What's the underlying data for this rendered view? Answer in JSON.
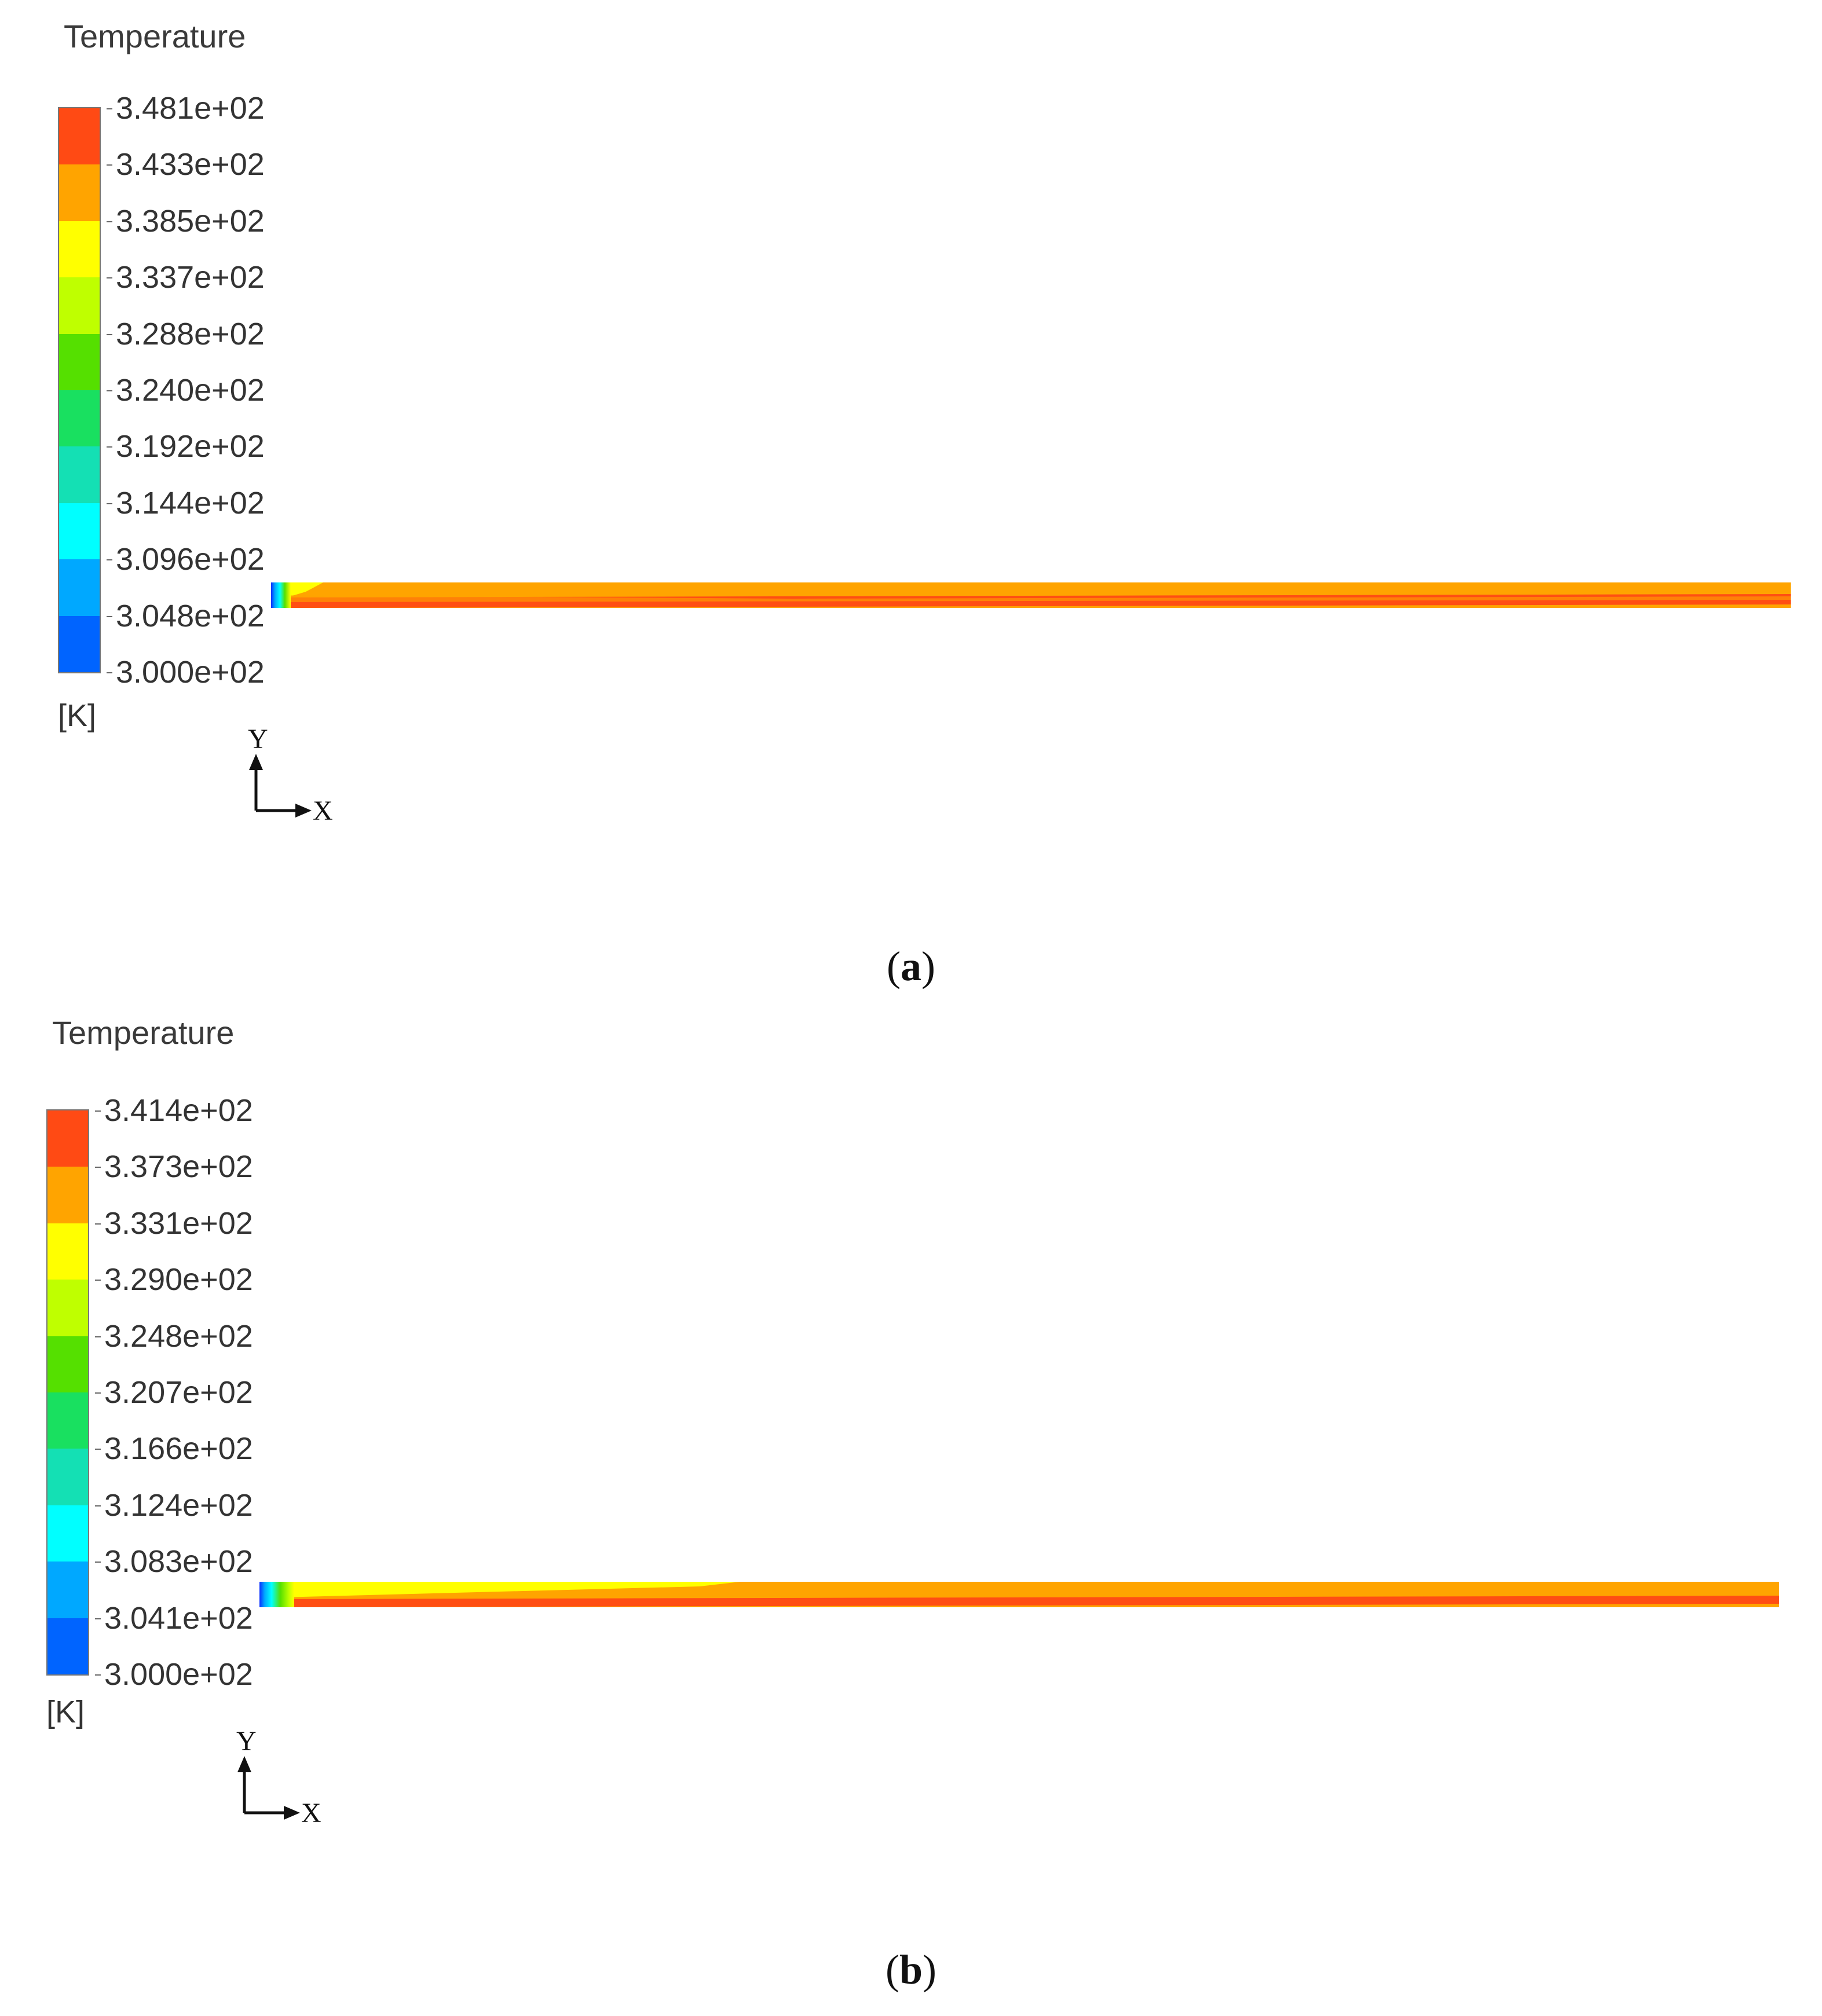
{
  "panels": [
    {
      "id": "a",
      "colorbar_title": "Temperature",
      "unit": "[K]",
      "levels": [
        "3.481e+02",
        "3.433e+02",
        "3.385e+02",
        "3.337e+02",
        "3.288e+02",
        "3.240e+02",
        "3.192e+02",
        "3.144e+02",
        "3.096e+02",
        "3.048e+02",
        "3.000e+02"
      ],
      "colors": [
        "#ff4a14",
        "#ffa400",
        "#ffff00",
        "#bfff00",
        "#55e000",
        "#19e060",
        "#14e0b4",
        "#00ffff",
        "#00a8ff",
        "#0064ff",
        "#0a2eff"
      ],
      "axis_x": "X",
      "axis_y": "Y",
      "caption_open": "(",
      "caption_letter": "a",
      "caption_close": ")"
    },
    {
      "id": "b",
      "colorbar_title": "Temperature",
      "unit": "[K]",
      "levels": [
        "3.414e+02",
        "3.373e+02",
        "3.331e+02",
        "3.290e+02",
        "3.248e+02",
        "3.207e+02",
        "3.166e+02",
        "3.124e+02",
        "3.083e+02",
        "3.041e+02",
        "3.000e+02"
      ],
      "colors": [
        "#ff4a14",
        "#ffa400",
        "#ffff00",
        "#bfff00",
        "#55e000",
        "#19e060",
        "#14e0b4",
        "#00ffff",
        "#00a8ff",
        "#0064ff",
        "#0a2eff"
      ],
      "axis_x": "X",
      "axis_y": "Y",
      "caption_open": "(",
      "caption_letter": "b",
      "caption_close": ")"
    }
  ]
}
